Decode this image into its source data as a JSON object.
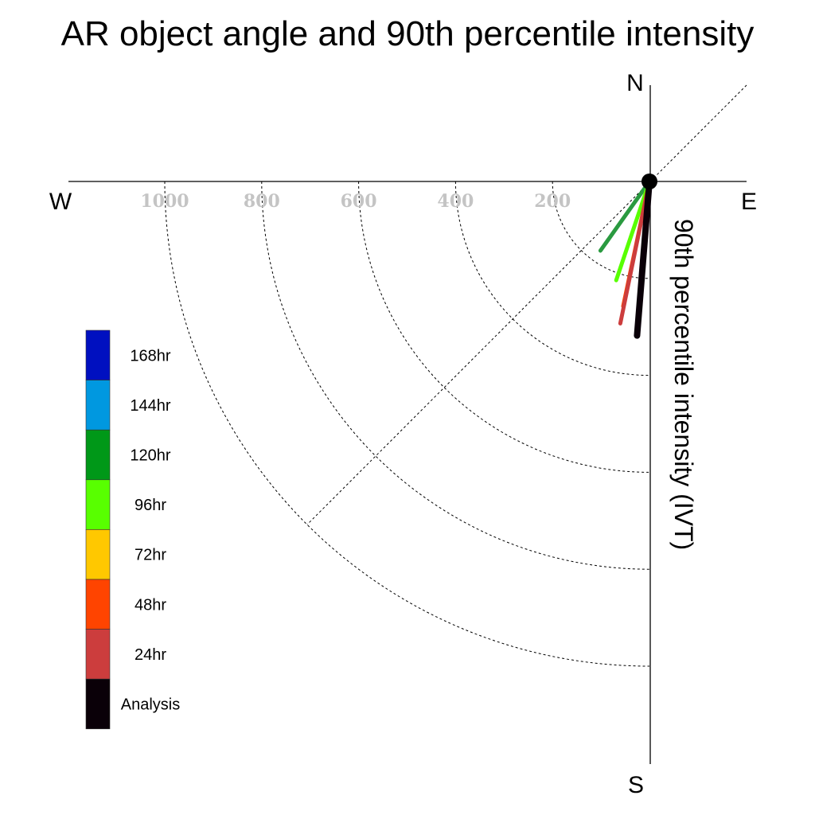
{
  "chart_data": {
    "type": "polar-vector",
    "title": "AR object angle and 90th percentile intensity",
    "radial_label": "90th percentile intensity (IVT)",
    "compass": {
      "north": "N",
      "south": "S",
      "west": "W",
      "east": "E"
    },
    "radial_ticks": [
      200,
      400,
      600,
      800,
      1000
    ],
    "radial_tick_labels": [
      "200",
      "400",
      "600",
      "800",
      "1000"
    ],
    "radial_max": 1000,
    "sector": "south-west quadrant",
    "grid": true,
    "legend_placement": "left",
    "legend": [
      {
        "label": "168hr",
        "color": "#0010c0"
      },
      {
        "label": "144hr",
        "color": "#0098e0"
      },
      {
        "label": "120hr",
        "color": "#009818"
      },
      {
        "label": "96hr",
        "color": "#58ff00"
      },
      {
        "label": "72hr",
        "color": "#ffc800"
      },
      {
        "label": "48hr",
        "color": "#ff4400"
      },
      {
        "label": "24hr",
        "color": "#cc3d3d"
      },
      {
        "label": "Analysis",
        "color": "#0a0008"
      }
    ],
    "series": [
      {
        "name": "120hr",
        "color": "#2a9a40",
        "angle_from_south_deg": 35.3,
        "intensity": 175
      },
      {
        "name": "96hr",
        "color": "#58ff00",
        "angle_from_south_deg": 18.6,
        "intensity": 215
      },
      {
        "name": "48hr",
        "color": "#ff4400",
        "angle_from_south_deg": 11.9,
        "intensity": 263
      },
      {
        "name": "24hr",
        "color": "#cc3d3d",
        "angle_from_south_deg": 11.6,
        "intensity": 299
      },
      {
        "name": "Analysis",
        "color": "#0a0008",
        "angle_from_south_deg": 4.6,
        "intensity": 319
      }
    ]
  }
}
